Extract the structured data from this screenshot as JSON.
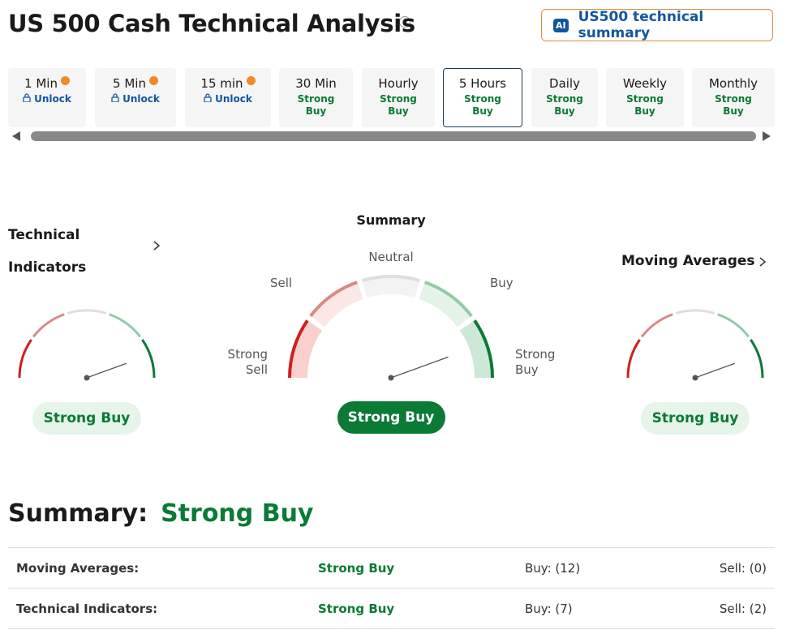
{
  "header": {
    "title": "US 500 Cash Technical Analysis",
    "ai_badge": "AI",
    "ai_button": "US500 technical summary"
  },
  "tabs": [
    {
      "label": "1 Min",
      "status": "Unlock",
      "locked": true
    },
    {
      "label": "5 Min",
      "status": "Unlock",
      "locked": true
    },
    {
      "label": "15 min",
      "status": "Unlock",
      "locked": true
    },
    {
      "label": "30 Min",
      "status": "Strong Buy",
      "locked": false
    },
    {
      "label": "Hourly",
      "status": "Strong Buy",
      "locked": false
    },
    {
      "label": "5 Hours",
      "status": "Strong Buy",
      "locked": false,
      "selected": true
    },
    {
      "label": "Daily",
      "status": "Strong Buy",
      "locked": false
    },
    {
      "label": "Weekly",
      "status": "Strong Buy",
      "locked": false
    },
    {
      "label": "Monthly",
      "status": "Strong Buy",
      "locked": false
    }
  ],
  "gauges": [
    {
      "title": "Technical Indicators",
      "result": "Strong Buy",
      "link": true
    },
    {
      "title": "Summary",
      "result": "Strong Buy",
      "emphasis": true,
      "labels": [
        "Strong Sell",
        "Sell",
        "Neutral",
        "Buy",
        "Strong Buy"
      ]
    },
    {
      "title": "Moving Averages",
      "result": "Strong Buy",
      "link": true
    }
  ],
  "summary": {
    "heading": "Summary:",
    "value": "Strong Buy",
    "rows": [
      [
        "Moving Averages:",
        "Strong Buy",
        "Buy: (12)",
        "Sell: (0)"
      ],
      [
        "Technical Indicators:",
        "Strong Buy",
        "Buy: (7)",
        "Sell: (2)"
      ]
    ]
  }
}
